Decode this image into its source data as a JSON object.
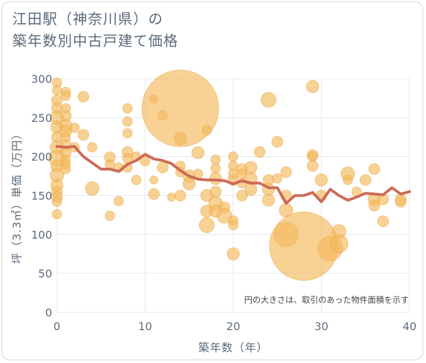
{
  "title_line1": "江田駅（神奈川県）の",
  "title_line2": "築年数別中古戸建て価格",
  "colors": {
    "bubble": "#f5b95c",
    "bubble_stroke": "#e8a640",
    "line": "#cd6a55",
    "grid": "#e3e8ee",
    "text": "#5b6b7c"
  },
  "chart_data": {
    "type": "scatter",
    "xlabel": "築年数（年）",
    "ylabel": "坪（3.3㎡）単価（万円）",
    "xlim": [
      0,
      40
    ],
    "ylim": [
      0,
      300
    ],
    "x_ticks": [
      0,
      10,
      20,
      30,
      40
    ],
    "y_ticks": [
      0,
      50,
      100,
      150,
      200,
      250,
      300
    ],
    "annotation": "円の大きさは、取引のあった物件面積を示す",
    "avg_line": {
      "x": [
        0,
        1,
        2,
        3,
        4,
        5,
        6,
        7,
        8,
        9,
        10,
        11,
        12,
        13,
        14,
        15,
        16,
        17,
        18,
        19,
        20,
        21,
        22,
        23,
        24,
        25,
        26,
        27,
        28,
        29,
        30,
        31,
        32,
        33,
        34,
        35,
        36,
        37,
        38,
        39,
        40
      ],
      "y": [
        213,
        212,
        213,
        200,
        192,
        184,
        184,
        181,
        190,
        195,
        203,
        197,
        195,
        191,
        182,
        175,
        171,
        170,
        170,
        169,
        165,
        169,
        166,
        166,
        160,
        160,
        140,
        150,
        150,
        154,
        142,
        158,
        150,
        144,
        148,
        153,
        152,
        151,
        160,
        152,
        155
      ]
    },
    "points": [
      {
        "x": 0,
        "y": 295,
        "r": 7
      },
      {
        "x": 0,
        "y": 285,
        "r": 7
      },
      {
        "x": 0,
        "y": 272,
        "r": 8
      },
      {
        "x": 0,
        "y": 262,
        "r": 8
      },
      {
        "x": 0,
        "y": 250,
        "r": 10
      },
      {
        "x": 0,
        "y": 238,
        "r": 9
      },
      {
        "x": 0,
        "y": 225,
        "r": 8
      },
      {
        "x": 0,
        "y": 212,
        "r": 10
      },
      {
        "x": 0,
        "y": 198,
        "r": 12
      },
      {
        "x": 0,
        "y": 188,
        "r": 9
      },
      {
        "x": 0,
        "y": 176,
        "r": 10
      },
      {
        "x": 0,
        "y": 163,
        "r": 9
      },
      {
        "x": 0,
        "y": 155,
        "r": 8
      },
      {
        "x": 0,
        "y": 148,
        "r": 8
      },
      {
        "x": 0,
        "y": 142,
        "r": 7
      },
      {
        "x": 0,
        "y": 126,
        "r": 7
      },
      {
        "x": 1,
        "y": 283,
        "r": 7
      },
      {
        "x": 1,
        "y": 278,
        "r": 7
      },
      {
        "x": 1,
        "y": 262,
        "r": 7
      },
      {
        "x": 1,
        "y": 252,
        "r": 8
      },
      {
        "x": 1,
        "y": 240,
        "r": 9
      },
      {
        "x": 1,
        "y": 233,
        "r": 9
      },
      {
        "x": 1,
        "y": 225,
        "r": 7
      },
      {
        "x": 1,
        "y": 215,
        "r": 8
      },
      {
        "x": 1,
        "y": 205,
        "r": 8
      },
      {
        "x": 1,
        "y": 196,
        "r": 7
      },
      {
        "x": 1,
        "y": 190,
        "r": 7
      },
      {
        "x": 1,
        "y": 184,
        "r": 7
      },
      {
        "x": 2,
        "y": 237,
        "r": 7
      },
      {
        "x": 2,
        "y": 212,
        "r": 7
      },
      {
        "x": 3,
        "y": 277,
        "r": 8
      },
      {
        "x": 3,
        "y": 228,
        "r": 8
      },
      {
        "x": 4,
        "y": 212,
        "r": 7
      },
      {
        "x": 4,
        "y": 159,
        "r": 10
      },
      {
        "x": 6,
        "y": 199,
        "r": 8
      },
      {
        "x": 6,
        "y": 190,
        "r": 7
      },
      {
        "x": 6,
        "y": 124,
        "r": 7
      },
      {
        "x": 7,
        "y": 186,
        "r": 7
      },
      {
        "x": 7,
        "y": 143,
        "r": 7
      },
      {
        "x": 8,
        "y": 262,
        "r": 7
      },
      {
        "x": 8,
        "y": 245,
        "r": 7
      },
      {
        "x": 8,
        "y": 230,
        "r": 7
      },
      {
        "x": 8,
        "y": 206,
        "r": 8
      },
      {
        "x": 8,
        "y": 198,
        "r": 7
      },
      {
        "x": 8,
        "y": 186,
        "r": 7
      },
      {
        "x": 9,
        "y": 200,
        "r": 7
      },
      {
        "x": 9,
        "y": 170,
        "r": 7
      },
      {
        "x": 10,
        "y": 194,
        "r": 7
      },
      {
        "x": 11,
        "y": 274,
        "r": 6
      },
      {
        "x": 11,
        "y": 170,
        "r": 6
      },
      {
        "x": 11,
        "y": 152,
        "r": 8
      },
      {
        "x": 12,
        "y": 253,
        "r": 7
      },
      {
        "x": 12,
        "y": 186,
        "r": 8
      },
      {
        "x": 13,
        "y": 148,
        "r": 6
      },
      {
        "x": 14,
        "y": 262,
        "r": 56
      },
      {
        "x": 14,
        "y": 223,
        "r": 9
      },
      {
        "x": 14,
        "y": 188,
        "r": 7
      },
      {
        "x": 14,
        "y": 180,
        "r": 7
      },
      {
        "x": 14,
        "y": 150,
        "r": 8
      },
      {
        "x": 15,
        "y": 175,
        "r": 9
      },
      {
        "x": 15,
        "y": 165,
        "r": 9
      },
      {
        "x": 16,
        "y": 205,
        "r": 9
      },
      {
        "x": 16,
        "y": 178,
        "r": 7
      },
      {
        "x": 17,
        "y": 234,
        "r": 7
      },
      {
        "x": 17,
        "y": 150,
        "r": 9
      },
      {
        "x": 17,
        "y": 130,
        "r": 9
      },
      {
        "x": 17,
        "y": 112,
        "r": 11
      },
      {
        "x": 18,
        "y": 196,
        "r": 7
      },
      {
        "x": 18,
        "y": 185,
        "r": 7
      },
      {
        "x": 18,
        "y": 172,
        "r": 9
      },
      {
        "x": 18,
        "y": 155,
        "r": 8
      },
      {
        "x": 18,
        "y": 140,
        "r": 10
      },
      {
        "x": 18,
        "y": 130,
        "r": 9
      },
      {
        "x": 19,
        "y": 135,
        "r": 8
      },
      {
        "x": 19,
        "y": 124,
        "r": 11
      },
      {
        "x": 20,
        "y": 200,
        "r": 7
      },
      {
        "x": 20,
        "y": 188,
        "r": 7
      },
      {
        "x": 20,
        "y": 178,
        "r": 7
      },
      {
        "x": 20,
        "y": 170,
        "r": 8
      },
      {
        "x": 20,
        "y": 118,
        "r": 7
      },
      {
        "x": 20,
        "y": 112,
        "r": 7
      },
      {
        "x": 20,
        "y": 75,
        "r": 9
      },
      {
        "x": 21,
        "y": 184,
        "r": 8
      },
      {
        "x": 21,
        "y": 178,
        "r": 7
      },
      {
        "x": 21,
        "y": 166,
        "r": 7
      },
      {
        "x": 21,
        "y": 150,
        "r": 8
      },
      {
        "x": 22,
        "y": 186,
        "r": 9
      },
      {
        "x": 22,
        "y": 172,
        "r": 9
      },
      {
        "x": 22,
        "y": 158,
        "r": 9
      },
      {
        "x": 23,
        "y": 206,
        "r": 8
      },
      {
        "x": 24,
        "y": 170,
        "r": 8
      },
      {
        "x": 24,
        "y": 158,
        "r": 9
      },
      {
        "x": 24,
        "y": 144,
        "r": 9
      },
      {
        "x": 24,
        "y": 273,
        "r": 11
      },
      {
        "x": 25,
        "y": 219,
        "r": 8
      },
      {
        "x": 25,
        "y": 172,
        "r": 7
      },
      {
        "x": 26,
        "y": 180,
        "r": 8
      },
      {
        "x": 26,
        "y": 150,
        "r": 8
      },
      {
        "x": 26,
        "y": 131,
        "r": 10
      },
      {
        "x": 26,
        "y": 100,
        "r": 18
      },
      {
        "x": 28,
        "y": 85,
        "r": 50
      },
      {
        "x": 29,
        "y": 290,
        "r": 9
      },
      {
        "x": 29,
        "y": 202,
        "r": 8
      },
      {
        "x": 29,
        "y": 200,
        "r": 7
      },
      {
        "x": 29,
        "y": 188,
        "r": 8
      },
      {
        "x": 30,
        "y": 170,
        "r": 9
      },
      {
        "x": 30,
        "y": 150,
        "r": 8
      },
      {
        "x": 31,
        "y": 82,
        "r": 18
      },
      {
        "x": 32,
        "y": 104,
        "r": 10
      },
      {
        "x": 32,
        "y": 88,
        "r": 13
      },
      {
        "x": 33,
        "y": 178,
        "r": 10
      },
      {
        "x": 33,
        "y": 170,
        "r": 7
      },
      {
        "x": 34,
        "y": 155,
        "r": 7
      },
      {
        "x": 35,
        "y": 170,
        "r": 8
      },
      {
        "x": 36,
        "y": 184,
        "r": 8
      },
      {
        "x": 36,
        "y": 145,
        "r": 9
      },
      {
        "x": 36,
        "y": 137,
        "r": 8
      },
      {
        "x": 37,
        "y": 145,
        "r": 8
      },
      {
        "x": 37,
        "y": 117,
        "r": 8
      },
      {
        "x": 39,
        "y": 145,
        "r": 8
      },
      {
        "x": 39,
        "y": 142,
        "r": 8
      }
    ]
  }
}
